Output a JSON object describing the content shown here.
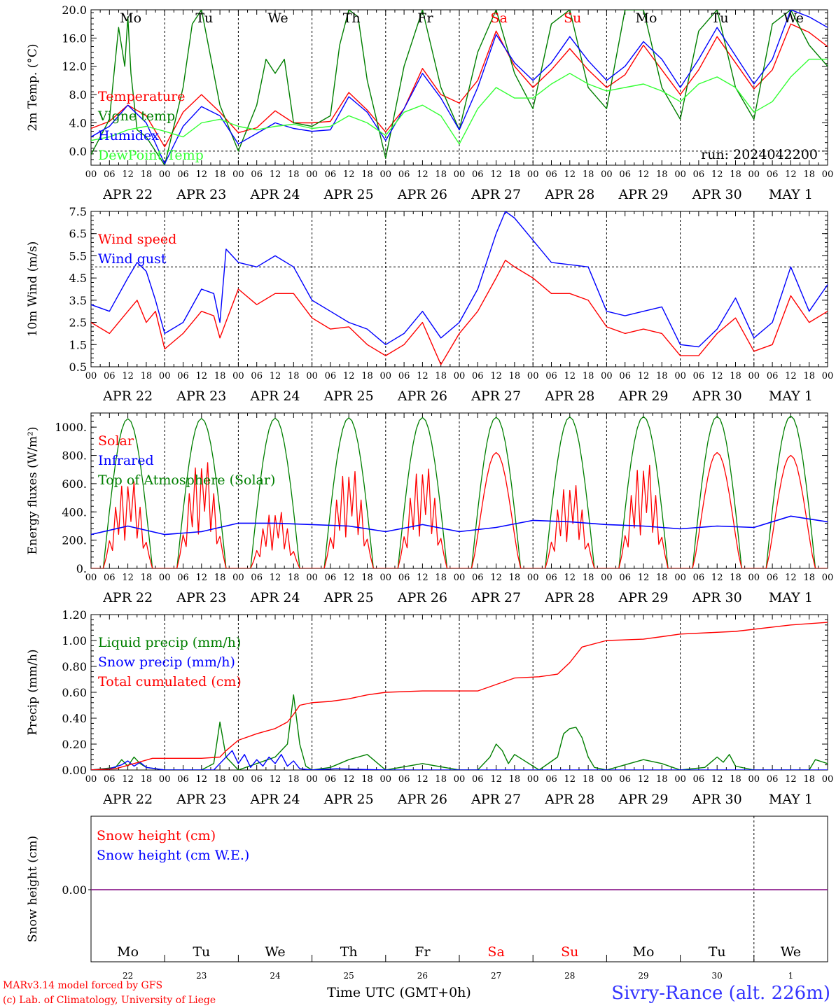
{
  "day_headers": [
    "Mo",
    "Tu",
    "We",
    "Th",
    "Fr",
    "Sa",
    "Su",
    "Mo",
    "Tu",
    "We"
  ],
  "weekend_days": [
    "Sa",
    "Su"
  ],
  "hour_labels": [
    "00",
    "06",
    "12",
    "18"
  ],
  "final_hour_label": "00",
  "date_labels": [
    "APR 22",
    "APR 23",
    "APR 24",
    "APR 25",
    "APR 26",
    "APR 27",
    "APR 28",
    "APR 29",
    "APR 30",
    "MAY  1"
  ],
  "bottom_day_numbers": [
    "22",
    "23",
    "24",
    "25",
    "26",
    "27",
    "28",
    "29",
    "30",
    "1"
  ],
  "run_label": "run: 2024042200",
  "xlabel": "Time UTC (GMT+0h)",
  "footer_left": [
    "MARv3.14 model forced by GFS",
    "(c) Lab. of Climatology, University of Liege"
  ],
  "station": "Sivry-Rance (alt. 226m)",
  "colors": {
    "red": "#ff0000",
    "green": "#007f00",
    "blue": "#0000ff",
    "lightgreen": "#33ff33",
    "purple": "#7f007f"
  },
  "chart_data": [
    {
      "type": "line",
      "ylabel": "2m Temp. (°C)",
      "ylim": [
        -2,
        20
      ],
      "yticks": [
        "0.0",
        "4.0",
        "8.0",
        "12.0",
        "16.0",
        "20.0"
      ],
      "x_unit": "hours since APR 22 00 UTC",
      "ref_line": 0,
      "series": [
        {
          "name": "Temperature",
          "color": "red",
          "x": [
            0,
            6,
            12,
            18,
            24,
            30,
            36,
            42,
            48,
            54,
            60,
            66,
            72,
            78,
            84,
            90,
            96,
            102,
            108,
            114,
            120,
            126,
            132,
            138,
            144,
            150,
            156,
            162,
            168,
            174,
            180,
            186,
            192,
            198,
            204,
            210,
            216,
            222,
            228,
            234,
            240
          ],
          "y": [
            3.2,
            4.2,
            6.5,
            5.0,
            0.6,
            5.5,
            8.0,
            5.5,
            2.6,
            3.3,
            5.7,
            4.0,
            4.0,
            4.2,
            8.3,
            5.8,
            2.7,
            6.0,
            11.7,
            8.0,
            6.8,
            10.0,
            17.0,
            12.0,
            9.0,
            11.5,
            14.5,
            11.5,
            9.0,
            10.8,
            15.0,
            11.5,
            8.0,
            11.5,
            16.2,
            12.5,
            8.8,
            11.5,
            18.0,
            16.8,
            14.8
          ]
        },
        {
          "name": "Vigne temp",
          "color": "green",
          "x": [
            0,
            6,
            9,
            11,
            12,
            13,
            15,
            18,
            24,
            30,
            33,
            36,
            42,
            48,
            54,
            57,
            60,
            63,
            66,
            72,
            78,
            81,
            84,
            87,
            90,
            96,
            102,
            108,
            114,
            120,
            126,
            132,
            138,
            144,
            150,
            156,
            162,
            168,
            174,
            180,
            186,
            192,
            198,
            204,
            210,
            216,
            222,
            228,
            234,
            240
          ],
          "y": [
            -0.5,
            4.5,
            17.5,
            12.0,
            19.0,
            11.0,
            3.0,
            2.0,
            -2.0,
            9.0,
            18.0,
            20.0,
            6.5,
            0.0,
            6.5,
            13.0,
            11.0,
            13.0,
            4.0,
            3.5,
            5.0,
            15.0,
            20.0,
            19.0,
            10.0,
            -1.0,
            12.0,
            20.0,
            9.0,
            3.0,
            14.0,
            20.0,
            11.0,
            6.0,
            18.0,
            20.0,
            9.0,
            6.0,
            20.0,
            20.0,
            9.0,
            4.5,
            17.0,
            20.0,
            9.0,
            4.5,
            18.0,
            20.0,
            15.0,
            12.0
          ]
        },
        {
          "name": "Humidex",
          "color": "blue",
          "x": [
            0,
            6,
            12,
            18,
            24,
            30,
            36,
            42,
            48,
            54,
            60,
            66,
            72,
            78,
            84,
            90,
            96,
            102,
            108,
            114,
            120,
            126,
            132,
            138,
            144,
            150,
            156,
            162,
            168,
            174,
            180,
            186,
            192,
            198,
            204,
            210,
            216,
            222,
            228,
            234,
            240
          ],
          "y": [
            2.0,
            3.5,
            6.5,
            4.0,
            -1.8,
            3.5,
            6.3,
            5.0,
            1.0,
            2.5,
            4.0,
            3.2,
            2.8,
            3.0,
            7.7,
            5.5,
            1.5,
            6.0,
            11.0,
            7.5,
            3.0,
            9.0,
            16.5,
            12.5,
            10.0,
            12.5,
            16.2,
            12.8,
            10.0,
            12.0,
            15.5,
            13.0,
            9.0,
            13.0,
            17.5,
            13.5,
            9.5,
            13.0,
            20.0,
            19.0,
            17.5
          ]
        },
        {
          "name": "DewPoint Temp",
          "color": "lightgreen",
          "x": [
            0,
            6,
            12,
            18,
            24,
            30,
            36,
            42,
            48,
            54,
            60,
            66,
            72,
            78,
            84,
            90,
            96,
            102,
            108,
            114,
            120,
            126,
            132,
            138,
            144,
            150,
            156,
            162,
            168,
            174,
            180,
            186,
            192,
            198,
            204,
            210,
            216,
            222,
            228,
            234,
            240
          ],
          "y": [
            1.5,
            2.0,
            3.0,
            3.5,
            2.8,
            2.0,
            4.0,
            4.5,
            3.5,
            3.0,
            3.5,
            3.8,
            3.2,
            3.5,
            5.0,
            4.0,
            2.2,
            5.5,
            6.5,
            5.0,
            1.0,
            6.0,
            9.0,
            7.5,
            7.5,
            9.5,
            11.0,
            9.5,
            8.5,
            9.0,
            9.5,
            8.5,
            7.0,
            9.5,
            10.5,
            9.0,
            5.5,
            7.0,
            10.5,
            13.0,
            13.0
          ]
        }
      ]
    },
    {
      "type": "line",
      "ylabel": "10m Wind (m/s)",
      "ylim": [
        0.5,
        7.5
      ],
      "yticks": [
        "0.5",
        "1.5",
        "2.5",
        "3.5",
        "4.5",
        "5.5",
        "6.5",
        "7.5"
      ],
      "x_unit": "hours since APR 22 00 UTC",
      "ref_line": 5,
      "series": [
        {
          "name": "Wind speed",
          "color": "red",
          "x": [
            0,
            6,
            12,
            15,
            18,
            21,
            24,
            30,
            36,
            40,
            42,
            48,
            54,
            60,
            66,
            72,
            78,
            84,
            90,
            96,
            102,
            108,
            114,
            120,
            126,
            132,
            135,
            138,
            144,
            150,
            156,
            162,
            168,
            174,
            180,
            186,
            192,
            198,
            204,
            210,
            216,
            222,
            228,
            234,
            240
          ],
          "y": [
            2.5,
            2.0,
            3.0,
            3.5,
            2.5,
            3.0,
            1.3,
            2.0,
            3.0,
            2.8,
            1.8,
            4.0,
            3.3,
            3.8,
            3.8,
            2.7,
            2.2,
            2.3,
            1.5,
            1.0,
            1.5,
            2.5,
            0.6,
            2.0,
            3.0,
            4.5,
            5.3,
            5.0,
            4.5,
            3.8,
            3.8,
            3.5,
            2.3,
            2.0,
            2.2,
            2.0,
            1.0,
            1.0,
            2.0,
            2.7,
            1.2,
            1.5,
            3.7,
            2.5,
            3.0
          ]
        },
        {
          "name": "Wind gust",
          "color": "blue",
          "x": [
            0,
            6,
            12,
            15,
            18,
            21,
            24,
            30,
            36,
            40,
            42,
            44,
            48,
            54,
            60,
            66,
            72,
            78,
            84,
            90,
            96,
            102,
            108,
            114,
            120,
            126,
            132,
            135,
            138,
            144,
            150,
            156,
            162,
            168,
            174,
            180,
            186,
            192,
            198,
            204,
            210,
            216,
            222,
            228,
            234,
            240
          ],
          "y": [
            3.3,
            3.0,
            4.5,
            5.2,
            4.8,
            3.5,
            2.0,
            2.5,
            4.0,
            3.8,
            2.5,
            5.8,
            5.2,
            5.0,
            5.5,
            5.0,
            3.5,
            3.0,
            2.5,
            2.2,
            1.5,
            2.0,
            3.0,
            1.8,
            2.5,
            4.0,
            6.5,
            7.5,
            7.2,
            6.2,
            5.2,
            5.1,
            5.0,
            3.0,
            2.8,
            3.0,
            3.2,
            1.5,
            1.4,
            2.2,
            3.6,
            1.8,
            2.5,
            5.0,
            3.0,
            4.2
          ]
        }
      ]
    },
    {
      "type": "line",
      "ylabel": "Energy fluxes (W/m²)",
      "ylim": [
        0,
        1100
      ],
      "yticks": [
        "0.",
        "200.",
        "400.",
        "600.",
        "800.",
        "1000."
      ],
      "x_unit": "hours since APR 22 00 UTC",
      "series": [
        {
          "name": "Solar",
          "color": "red",
          "peaks": [
            680,
            830,
            440,
            760,
            780,
            820,
            650,
            810,
            820,
            800
          ],
          "spiky_days": [
            0,
            1,
            2,
            3,
            4,
            6,
            7
          ]
        },
        {
          "name": "Infrared",
          "color": "blue",
          "x": [
            0,
            12,
            24,
            36,
            48,
            60,
            72,
            84,
            96,
            108,
            120,
            132,
            144,
            156,
            168,
            180,
            192,
            204,
            216,
            228,
            240
          ],
          "y": [
            240,
            300,
            240,
            260,
            320,
            320,
            310,
            300,
            260,
            310,
            260,
            290,
            340,
            330,
            310,
            300,
            280,
            300,
            290,
            370,
            330
          ]
        },
        {
          "name": "Top of Atmosphere (Solar)",
          "color": "green",
          "peaks": [
            1060,
            1062,
            1064,
            1066,
            1068,
            1070,
            1072,
            1074,
            1076,
            1078
          ]
        }
      ]
    },
    {
      "type": "line",
      "ylabel": "Precip (mm/h)",
      "ylim": [
        0,
        1.2
      ],
      "yticks": [
        "0.00",
        "0.20",
        "0.40",
        "0.60",
        "0.80",
        "1.00",
        "1.20"
      ],
      "x_unit": "hours since APR 22 00 UTC",
      "series": [
        {
          "name": "Liquid precip (mm/h)",
          "color": "green",
          "x": [
            0,
            8,
            10,
            12,
            14,
            16,
            18,
            24,
            36,
            40,
            42,
            44,
            48,
            54,
            60,
            64,
            66,
            68,
            70,
            72,
            78,
            84,
            90,
            96,
            108,
            120,
            126,
            130,
            132,
            134,
            136,
            138,
            146,
            152,
            154,
            156,
            158,
            160,
            162,
            164,
            168,
            180,
            186,
            192,
            200,
            204,
            206,
            208,
            210,
            216,
            234,
            236,
            240
          ],
          "y": [
            0,
            0.02,
            0.08,
            0.03,
            0.1,
            0.05,
            0.02,
            0,
            0,
            0.05,
            0.37,
            0.1,
            0,
            0.05,
            0.1,
            0.2,
            0.58,
            0.2,
            0.03,
            0,
            0.02,
            0.08,
            0.12,
            0,
            0.05,
            0,
            0,
            0.1,
            0.2,
            0.15,
            0.05,
            0.12,
            0,
            0.1,
            0.28,
            0.32,
            0.33,
            0.25,
            0.1,
            0.02,
            0,
            0.08,
            0.05,
            0,
            0.02,
            0.1,
            0.06,
            0.12,
            0.03,
            0,
            0,
            0.08,
            0.05
          ]
        },
        {
          "name": "Snow precip (mm/h)",
          "color": "blue",
          "x": [
            0,
            6,
            10,
            12,
            14,
            16,
            18,
            24,
            40,
            44,
            46,
            48,
            50,
            52,
            54,
            56,
            58,
            60,
            62,
            64,
            66,
            68,
            72,
            80,
            96,
            240
          ],
          "y": [
            0,
            0.01,
            0.04,
            0.07,
            0.03,
            0.06,
            0.02,
            0,
            0,
            0.1,
            0.15,
            0.05,
            0.12,
            0.02,
            0.08,
            0.03,
            0.1,
            0.05,
            0.12,
            0.03,
            0.07,
            0.01,
            0,
            0.01,
            0,
            0
          ]
        },
        {
          "name": "Total cumulated (cm)",
          "color": "red",
          "x": [
            0,
            8,
            14,
            20,
            24,
            36,
            42,
            44,
            48,
            54,
            60,
            64,
            66,
            68,
            72,
            78,
            84,
            90,
            96,
            108,
            126,
            132,
            138,
            146,
            152,
            156,
            160,
            168,
            180,
            186,
            192,
            210,
            228,
            240
          ],
          "y": [
            0,
            0.01,
            0.05,
            0.09,
            0.09,
            0.09,
            0.1,
            0.15,
            0.23,
            0.28,
            0.32,
            0.37,
            0.43,
            0.5,
            0.52,
            0.53,
            0.55,
            0.58,
            0.6,
            0.61,
            0.61,
            0.66,
            0.71,
            0.72,
            0.74,
            0.83,
            0.95,
            1.0,
            1.01,
            1.03,
            1.05,
            1.07,
            1.12,
            1.14
          ]
        }
      ]
    },
    {
      "type": "line",
      "ylabel": "Snow height (cm)",
      "yticks": [
        "0.00"
      ],
      "series": [
        {
          "name": "Snow height (cm)",
          "color": "red",
          "x": [
            0,
            240
          ],
          "y": [
            0,
            0
          ]
        },
        {
          "name": "Snow height (cm W.E.)",
          "color": "blue",
          "x": [
            0,
            240
          ],
          "y": [
            0,
            0
          ]
        }
      ]
    }
  ]
}
